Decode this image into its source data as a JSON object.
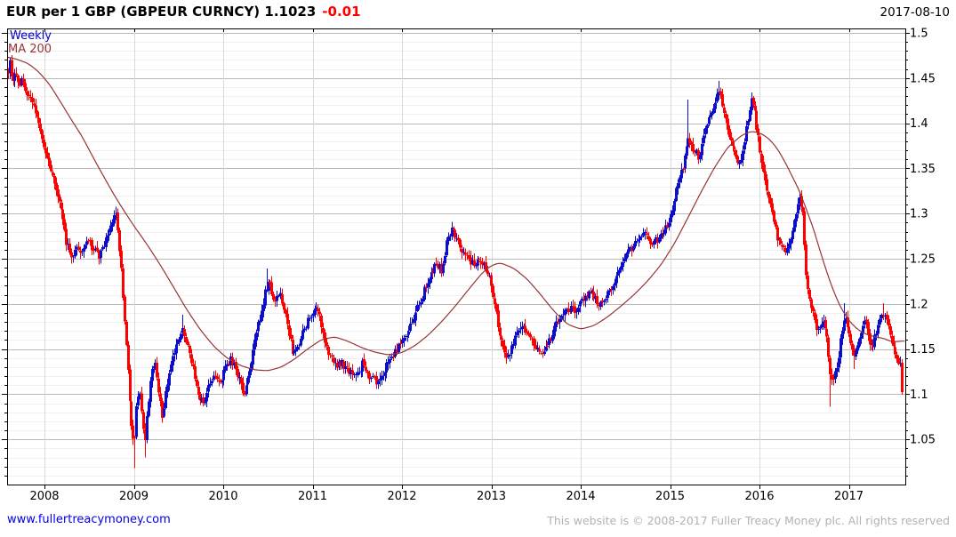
{
  "header": {
    "title": "EUR per 1 GBP (GBPEUR CURNCY) 1.1023",
    "change": "-0.01",
    "date": "2017-08-10"
  },
  "legend": {
    "timeframe": "Weekly",
    "ma": "MA 200"
  },
  "footer": {
    "site_link": "www.fullertreacymoney.com",
    "copyright": "This website is © 2008-2017 Fuller Treacy Money plc. All rights reserved"
  },
  "chart_data": {
    "type": "candlestick",
    "instrument": "EUR per 1 GBP (GBPEUR CURNCY)",
    "timeframe": "Weekly",
    "last_price": 1.1023,
    "change": -0.01,
    "overlay": "MA 200",
    "x_tick_years": [
      2008,
      2009,
      2010,
      2011,
      2012,
      2013,
      2014,
      2015,
      2016,
      2017
    ],
    "y_major_ticks": [
      1.05,
      1.1,
      1.15,
      1.2,
      1.25,
      1.3,
      1.35,
      1.4,
      1.45,
      1.5
    ],
    "y_minor_step": 0.01,
    "ylim": [
      1.0,
      1.505
    ],
    "xlim_decimal_years": [
      2007.59,
      2017.63
    ],
    "grid": true,
    "legend_position": "top-left",
    "colors": {
      "up": "#0d0dcd",
      "down": "#ff0000",
      "ma": "#993333",
      "grid_major": "#b9b9b9",
      "grid_minor": "#efefef",
      "grid_year": "#d9d9d9",
      "frame": "#000000",
      "axis_text": "#000000"
    },
    "close_anchors": [
      [
        2007.59,
        1.458
      ],
      [
        2007.61,
        1.468
      ],
      [
        2007.64,
        1.447
      ],
      [
        2007.67,
        1.455
      ],
      [
        2007.71,
        1.442
      ],
      [
        2007.75,
        1.448
      ],
      [
        2007.79,
        1.432
      ],
      [
        2007.84,
        1.428
      ],
      [
        2007.88,
        1.415
      ],
      [
        2007.92,
        1.402
      ],
      [
        2007.96,
        1.386
      ],
      [
        2008.0,
        1.37
      ],
      [
        2008.06,
        1.352
      ],
      [
        2008.12,
        1.332
      ],
      [
        2008.18,
        1.303
      ],
      [
        2008.24,
        1.27
      ],
      [
        2008.3,
        1.252
      ],
      [
        2008.36,
        1.266
      ],
      [
        2008.42,
        1.256
      ],
      [
        2008.48,
        1.27
      ],
      [
        2008.54,
        1.262
      ],
      [
        2008.6,
        1.252
      ],
      [
        2008.66,
        1.264
      ],
      [
        2008.72,
        1.278
      ],
      [
        2008.76,
        1.292
      ],
      [
        2008.8,
        1.3
      ],
      [
        2008.84,
        1.258
      ],
      [
        2008.88,
        1.2
      ],
      [
        2008.92,
        1.145
      ],
      [
        2008.96,
        1.075
      ],
      [
        2009.0,
        1.038
      ],
      [
        2009.03,
        1.088
      ],
      [
        2009.06,
        1.112
      ],
      [
        2009.09,
        1.075
      ],
      [
        2009.12,
        1.048
      ],
      [
        2009.16,
        1.092
      ],
      [
        2009.2,
        1.128
      ],
      [
        2009.24,
        1.138
      ],
      [
        2009.28,
        1.1
      ],
      [
        2009.32,
        1.072
      ],
      [
        2009.36,
        1.108
      ],
      [
        2009.4,
        1.128
      ],
      [
        2009.44,
        1.142
      ],
      [
        2009.48,
        1.156
      ],
      [
        2009.54,
        1.172
      ],
      [
        2009.6,
        1.152
      ],
      [
        2009.66,
        1.128
      ],
      [
        2009.72,
        1.098
      ],
      [
        2009.78,
        1.086
      ],
      [
        2009.84,
        1.112
      ],
      [
        2009.9,
        1.124
      ],
      [
        2009.96,
        1.112
      ],
      [
        2010.02,
        1.126
      ],
      [
        2010.08,
        1.14
      ],
      [
        2010.14,
        1.128
      ],
      [
        2010.2,
        1.108
      ],
      [
        2010.24,
        1.098
      ],
      [
        2010.3,
        1.132
      ],
      [
        2010.36,
        1.162
      ],
      [
        2010.42,
        1.192
      ],
      [
        2010.48,
        1.218
      ],
      [
        2010.52,
        1.222
      ],
      [
        2010.56,
        1.202
      ],
      [
        2010.62,
        1.212
      ],
      [
        2010.68,
        1.196
      ],
      [
        2010.74,
        1.164
      ],
      [
        2010.78,
        1.142
      ],
      [
        2010.84,
        1.152
      ],
      [
        2010.9,
        1.172
      ],
      [
        2010.96,
        1.186
      ],
      [
        2011.02,
        1.196
      ],
      [
        2011.08,
        1.184
      ],
      [
        2011.14,
        1.158
      ],
      [
        2011.2,
        1.14
      ],
      [
        2011.26,
        1.132
      ],
      [
        2011.32,
        1.136
      ],
      [
        2011.4,
        1.126
      ],
      [
        2011.48,
        1.118
      ],
      [
        2011.56,
        1.134
      ],
      [
        2011.64,
        1.12
      ],
      [
        2011.72,
        1.112
      ],
      [
        2011.8,
        1.126
      ],
      [
        2011.88,
        1.142
      ],
      [
        2011.96,
        1.152
      ],
      [
        2012.02,
        1.162
      ],
      [
        2012.08,
        1.172
      ],
      [
        2012.14,
        1.188
      ],
      [
        2012.2,
        1.202
      ],
      [
        2012.26,
        1.218
      ],
      [
        2012.32,
        1.232
      ],
      [
        2012.38,
        1.246
      ],
      [
        2012.44,
        1.238
      ],
      [
        2012.5,
        1.268
      ],
      [
        2012.56,
        1.285
      ],
      [
        2012.62,
        1.268
      ],
      [
        2012.68,
        1.256
      ],
      [
        2012.74,
        1.25
      ],
      [
        2012.8,
        1.242
      ],
      [
        2012.86,
        1.252
      ],
      [
        2012.92,
        1.242
      ],
      [
        2012.98,
        1.228
      ],
      [
        2013.04,
        1.196
      ],
      [
        2013.08,
        1.17
      ],
      [
        2013.13,
        1.152
      ],
      [
        2013.18,
        1.142
      ],
      [
        2013.23,
        1.152
      ],
      [
        2013.28,
        1.17
      ],
      [
        2013.33,
        1.178
      ],
      [
        2013.38,
        1.168
      ],
      [
        2013.44,
        1.162
      ],
      [
        2013.5,
        1.152
      ],
      [
        2013.57,
        1.142
      ],
      [
        2013.64,
        1.156
      ],
      [
        2013.7,
        1.172
      ],
      [
        2013.76,
        1.184
      ],
      [
        2013.83,
        1.192
      ],
      [
        2013.9,
        1.196
      ],
      [
        2013.96,
        1.192
      ],
      [
        2014.03,
        1.206
      ],
      [
        2014.1,
        1.214
      ],
      [
        2014.17,
        1.205
      ],
      [
        2014.24,
        1.198
      ],
      [
        2014.3,
        1.212
      ],
      [
        2014.37,
        1.226
      ],
      [
        2014.44,
        1.242
      ],
      [
        2014.51,
        1.255
      ],
      [
        2014.58,
        1.262
      ],
      [
        2014.65,
        1.272
      ],
      [
        2014.72,
        1.282
      ],
      [
        2014.78,
        1.262
      ],
      [
        2014.84,
        1.27
      ],
      [
        2014.9,
        1.276
      ],
      [
        2014.96,
        1.285
      ],
      [
        2015.02,
        1.302
      ],
      [
        2015.08,
        1.332
      ],
      [
        2015.14,
        1.352
      ],
      [
        2015.2,
        1.382
      ],
      [
        2015.26,
        1.372
      ],
      [
        2015.32,
        1.362
      ],
      [
        2015.38,
        1.394
      ],
      [
        2015.44,
        1.405
      ],
      [
        2015.5,
        1.422
      ],
      [
        2015.54,
        1.438
      ],
      [
        2015.6,
        1.415
      ],
      [
        2015.66,
        1.386
      ],
      [
        2015.72,
        1.366
      ],
      [
        2015.78,
        1.352
      ],
      [
        2015.84,
        1.386
      ],
      [
        2015.88,
        1.414
      ],
      [
        2015.91,
        1.428
      ],
      [
        2015.95,
        1.408
      ],
      [
        2016.0,
        1.372
      ],
      [
        2016.05,
        1.344
      ],
      [
        2016.1,
        1.316
      ],
      [
        2016.15,
        1.295
      ],
      [
        2016.2,
        1.272
      ],
      [
        2016.25,
        1.262
      ],
      [
        2016.3,
        1.256
      ],
      [
        2016.35,
        1.276
      ],
      [
        2016.4,
        1.3
      ],
      [
        2016.44,
        1.315
      ],
      [
        2016.48,
        1.302
      ],
      [
        2016.52,
        1.235
      ],
      [
        2016.56,
        1.206
      ],
      [
        2016.6,
        1.192
      ],
      [
        2016.64,
        1.168
      ],
      [
        2016.68,
        1.176
      ],
      [
        2016.72,
        1.186
      ],
      [
        2016.75,
        1.162
      ],
      [
        2016.78,
        1.128
      ],
      [
        2016.82,
        1.112
      ],
      [
        2016.86,
        1.126
      ],
      [
        2016.9,
        1.156
      ],
      [
        2016.94,
        1.186
      ],
      [
        2016.98,
        1.174
      ],
      [
        2017.02,
        1.154
      ],
      [
        2017.06,
        1.14
      ],
      [
        2017.1,
        1.152
      ],
      [
        2017.14,
        1.172
      ],
      [
        2017.18,
        1.184
      ],
      [
        2017.22,
        1.162
      ],
      [
        2017.26,
        1.148
      ],
      [
        2017.3,
        1.168
      ],
      [
        2017.34,
        1.182
      ],
      [
        2017.38,
        1.19
      ],
      [
        2017.42,
        1.18
      ],
      [
        2017.46,
        1.166
      ],
      [
        2017.5,
        1.152
      ],
      [
        2017.54,
        1.142
      ],
      [
        2017.57,
        1.134
      ],
      [
        2017.6,
        1.118
      ],
      [
        2017.605,
        1.1023
      ]
    ],
    "ma_anchors": [
      [
        2007.59,
        1.4735
      ],
      [
        2007.7,
        1.4705
      ],
      [
        2007.82,
        1.466
      ],
      [
        2007.94,
        1.4565
      ],
      [
        2008.06,
        1.4425
      ],
      [
        2008.18,
        1.4235
      ],
      [
        2008.3,
        1.404
      ],
      [
        2008.42,
        1.3855
      ],
      [
        2008.54,
        1.363
      ],
      [
        2008.66,
        1.3415
      ],
      [
        2008.78,
        1.3205
      ],
      [
        2008.9,
        1.3015
      ],
      [
        2009.0,
        1.2865
      ],
      [
        2009.15,
        1.2655
      ],
      [
        2009.3,
        1.2425
      ],
      [
        2009.45,
        1.2175
      ],
      [
        2009.6,
        1.1925
      ],
      [
        2009.75,
        1.1705
      ],
      [
        2009.9,
        1.1525
      ],
      [
        2010.05,
        1.1395
      ],
      [
        2010.2,
        1.1315
      ],
      [
        2010.35,
        1.127
      ],
      [
        2010.5,
        1.126
      ],
      [
        2010.65,
        1.13
      ],
      [
        2010.8,
        1.139
      ],
      [
        2010.95,
        1.1505
      ],
      [
        2011.1,
        1.1605
      ],
      [
        2011.25,
        1.1635
      ],
      [
        2011.4,
        1.1585
      ],
      [
        2011.55,
        1.1515
      ],
      [
        2011.7,
        1.1465
      ],
      [
        2011.85,
        1.1435
      ],
      [
        2012.0,
        1.146
      ],
      [
        2012.15,
        1.154
      ],
      [
        2012.3,
        1.166
      ],
      [
        2012.45,
        1.181
      ],
      [
        2012.6,
        1.198
      ],
      [
        2012.75,
        1.2165
      ],
      [
        2012.9,
        1.2345
      ],
      [
        2013.0,
        1.2425
      ],
      [
        2013.1,
        1.2455
      ],
      [
        2013.25,
        1.2395
      ],
      [
        2013.4,
        1.2275
      ],
      [
        2013.55,
        1.2105
      ],
      [
        2013.7,
        1.192
      ],
      [
        2013.85,
        1.1775
      ],
      [
        2014.0,
        1.172
      ],
      [
        2014.15,
        1.176
      ],
      [
        2014.3,
        1.1855
      ],
      [
        2014.45,
        1.1975
      ],
      [
        2014.6,
        1.2105
      ],
      [
        2014.75,
        1.2255
      ],
      [
        2014.9,
        1.2435
      ],
      [
        2015.05,
        1.267
      ],
      [
        2015.2,
        1.2955
      ],
      [
        2015.35,
        1.3245
      ],
      [
        2015.5,
        1.3515
      ],
      [
        2015.65,
        1.374
      ],
      [
        2015.8,
        1.3865
      ],
      [
        2015.9,
        1.391
      ],
      [
        2016.0,
        1.3895
      ],
      [
        2016.1,
        1.3835
      ],
      [
        2016.2,
        1.372
      ],
      [
        2016.3,
        1.3545
      ],
      [
        2016.45,
        1.3245
      ],
      [
        2016.6,
        1.2845
      ],
      [
        2016.7,
        1.2515
      ],
      [
        2016.8,
        1.2215
      ],
      [
        2016.9,
        1.1975
      ],
      [
        2017.0,
        1.1815
      ],
      [
        2017.1,
        1.1715
      ],
      [
        2017.2,
        1.166
      ],
      [
        2017.3,
        1.1635
      ],
      [
        2017.4,
        1.1615
      ],
      [
        2017.48,
        1.158
      ],
      [
        2017.56,
        1.1585
      ],
      [
        2017.64,
        1.159
      ]
    ],
    "wick_events": [
      [
        2009.0,
        "low",
        1.018
      ],
      [
        2009.12,
        "low",
        1.03
      ],
      [
        2009.54,
        "high",
        1.188
      ],
      [
        2010.49,
        "high",
        1.239
      ],
      [
        2012.56,
        "high",
        1.291
      ],
      [
        2015.2,
        "high",
        1.426
      ],
      [
        2015.54,
        "high",
        1.447
      ],
      [
        2015.91,
        "high",
        1.434
      ],
      [
        2016.78,
        "low",
        1.086
      ],
      [
        2016.94,
        "high",
        1.201
      ],
      [
        2017.06,
        "low",
        1.128
      ],
      [
        2017.38,
        "high",
        1.201
      ]
    ],
    "jitter": {
      "seed": 9,
      "close_amp": 0.0045,
      "wick_amp": 0.0062
    }
  }
}
